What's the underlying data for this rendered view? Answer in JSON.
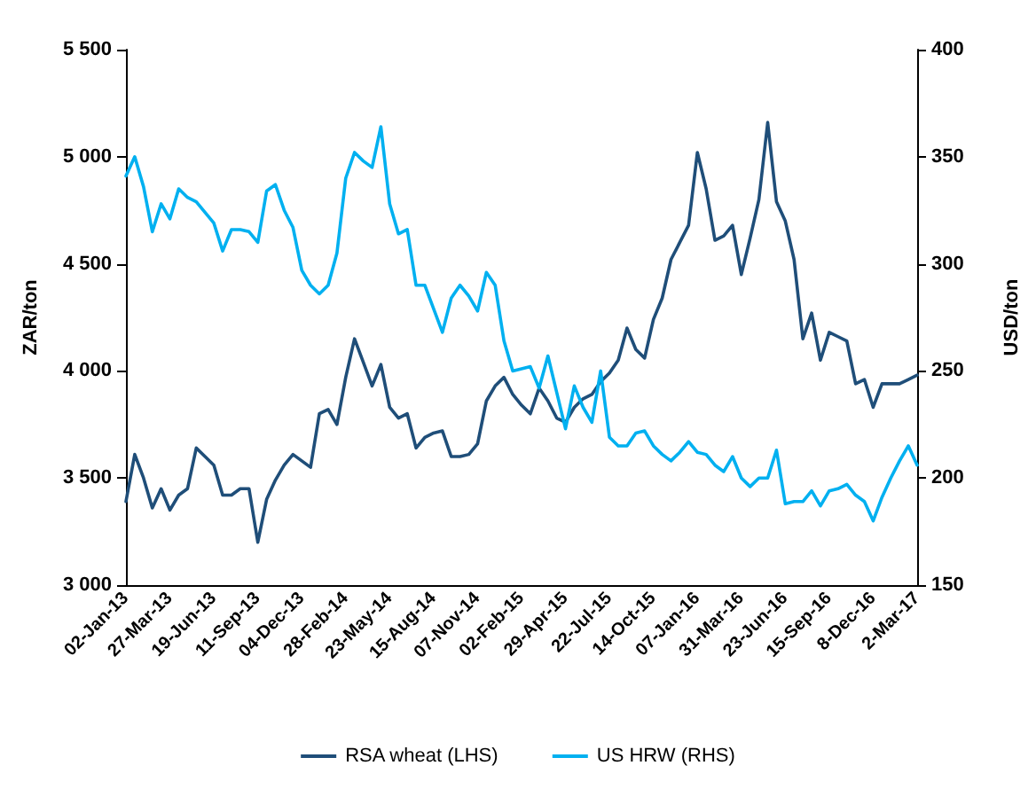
{
  "chart_data": {
    "type": "line",
    "ylabel": "ZAR/ton",
    "y2label": "USD/ton",
    "categories": [
      "02-Jan-13",
      null,
      null,
      null,
      null,
      "27-Mar-13",
      null,
      null,
      null,
      null,
      "19-Jun-13",
      null,
      null,
      null,
      null,
      "11-Sep-13",
      null,
      null,
      null,
      null,
      "04-Dec-13",
      null,
      null,
      null,
      null,
      "28-Feb-14",
      null,
      null,
      null,
      null,
      "23-May-14",
      null,
      null,
      null,
      null,
      "15-Aug-14",
      null,
      null,
      null,
      null,
      "07-Nov-14",
      null,
      null,
      null,
      null,
      "02-Feb-15",
      null,
      null,
      null,
      null,
      "29-Apr-15",
      null,
      null,
      null,
      null,
      "22-Jul-15",
      null,
      null,
      null,
      null,
      "14-Oct-15",
      null,
      null,
      null,
      null,
      "07-Jan-16",
      null,
      null,
      null,
      null,
      "31-Mar-16",
      null,
      null,
      null,
      null,
      "23-Jun-16",
      null,
      null,
      null,
      null,
      "15-Sep-16",
      null,
      null,
      null,
      null,
      "8-Dec-16",
      null,
      null,
      null,
      null,
      "2-Mar-17"
    ],
    "series": [
      {
        "name": "RSA wheat (LHS)",
        "color": "#1f4e79",
        "values": [
          3390,
          3610,
          3500,
          3360,
          3450,
          3350,
          3420,
          3450,
          3640,
          3600,
          3560,
          3420,
          3420,
          3450,
          3450,
          3200,
          3400,
          3490,
          3560,
          3610,
          3580,
          3550,
          3800,
          3820,
          3750,
          3970,
          4150,
          4040,
          3930,
          4030,
          3830,
          3780,
          3800,
          3640,
          3690,
          3710,
          3720,
          3600,
          3600,
          3610,
          3660,
          3860,
          3930,
          3970,
          3890,
          3840,
          3800,
          3920,
          3860,
          3780,
          3760,
          3830,
          3870,
          3890,
          3950,
          3990,
          4050,
          4200,
          4100,
          4060,
          4240,
          4340,
          4520,
          4600,
          4680,
          5020,
          4850,
          4610,
          4630,
          4680,
          4450,
          4620,
          4800,
          5160,
          4790,
          4700,
          4520,
          4150,
          4270,
          4050,
          4180,
          4160,
          4140,
          3940,
          3960,
          3830,
          3940,
          3940,
          3940,
          3960,
          3980
        ]
      },
      {
        "name": "US HRW (RHS)",
        "color": "#00b0f0",
        "axis": "y2",
        "values": [
          341,
          350,
          336,
          315,
          328,
          321,
          335,
          331,
          329,
          324,
          319,
          306,
          316,
          316,
          315,
          310,
          334,
          337,
          325,
          317,
          297,
          290,
          286,
          290,
          305,
          340,
          352,
          348,
          345,
          364,
          328,
          314,
          316,
          290,
          290,
          279,
          268,
          284,
          290,
          285,
          278,
          296,
          290,
          264,
          250,
          251,
          252,
          242,
          257,
          240,
          223,
          243,
          233,
          226,
          250,
          219,
          215,
          215,
          221,
          222,
          215,
          211,
          208,
          212,
          217,
          212,
          211,
          206,
          203,
          210,
          200,
          196,
          200,
          200,
          213,
          188,
          189,
          189,
          194,
          187,
          194,
          195,
          197,
          192,
          189,
          180,
          191,
          200,
          208,
          215,
          206
        ]
      }
    ],
    "ylim": [
      3000,
      5500
    ],
    "yticks": [
      {
        "value": 3000,
        "label": "3 000"
      },
      {
        "value": 3500,
        "label": "3 500"
      },
      {
        "value": 4000,
        "label": "4 000"
      },
      {
        "value": 4500,
        "label": "4 500"
      },
      {
        "value": 5000,
        "label": "5 000"
      },
      {
        "value": 5500,
        "label": "5 500"
      }
    ],
    "y2lim": [
      150,
      400
    ],
    "y2ticks": [
      150,
      200,
      250,
      300,
      350,
      400
    ],
    "grid": false,
    "legend": "bottom",
    "marker": "none",
    "line_style": "solid"
  }
}
